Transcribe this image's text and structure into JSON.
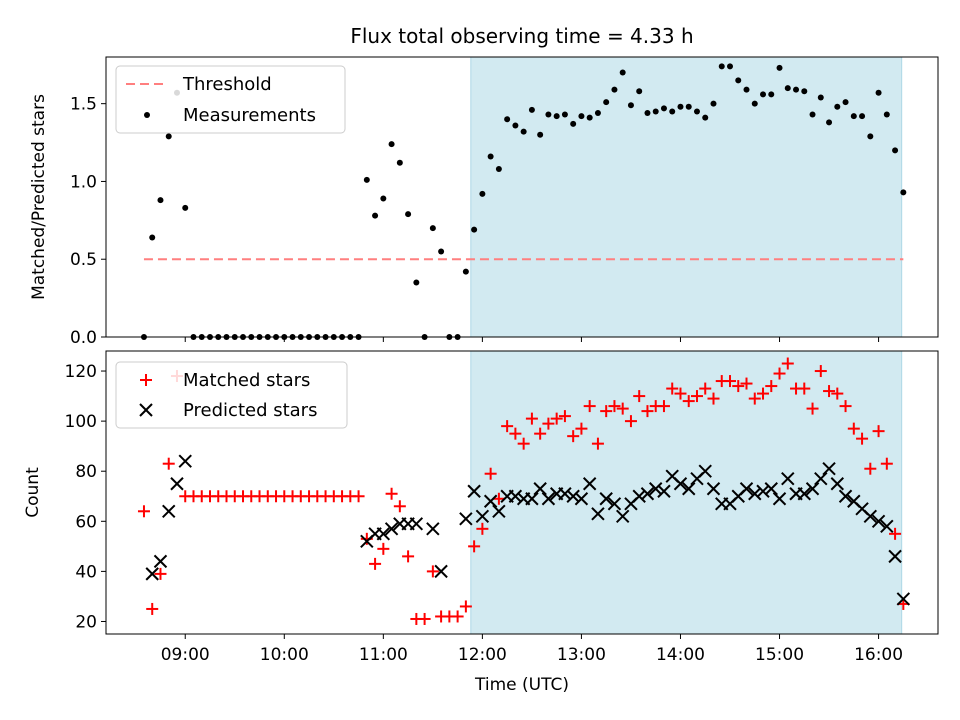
{
  "title": "Flux total observing time = 4.33 h",
  "colors": {
    "threshold": "#ff7f7f",
    "measurement": "#000000",
    "matched": "#ff0000",
    "predicted": "#000000",
    "shade": "#add8e6"
  },
  "chart_data": [
    {
      "type": "scatter",
      "ylabel": "Matched/Predicted stars",
      "ylim": [
        0,
        1.8
      ],
      "xlim_hours": [
        8.2,
        16.6
      ],
      "x_ticks": [
        "09:00",
        "10:00",
        "11:00",
        "12:00",
        "13:00",
        "14:00",
        "15:00",
        "16:00"
      ],
      "y_ticks": [
        "0.0",
        "0.5",
        "1.0",
        "1.5"
      ],
      "legend": [
        "Threshold",
        "Measurements"
      ],
      "legend_position": "top-left",
      "threshold": {
        "label": "Threshold",
        "y": 0.5,
        "x_start": "08:35",
        "x_end": "16:15",
        "style": "dashed"
      },
      "shaded_span": {
        "x_start": "11:53",
        "x_end": "16:14"
      },
      "series": [
        {
          "name": "Measurements",
          "points": [
            [
              "08:35",
              0.0
            ],
            [
              "08:40",
              0.64
            ],
            [
              "08:45",
              0.88
            ],
            [
              "08:50",
              1.29
            ],
            [
              "08:55",
              1.57
            ],
            [
              "09:00",
              0.83
            ],
            [
              "09:05",
              0.0
            ],
            [
              "09:10",
              0.0
            ],
            [
              "09:15",
              0.0
            ],
            [
              "09:20",
              0.0
            ],
            [
              "09:25",
              0.0
            ],
            [
              "09:30",
              0.0
            ],
            [
              "09:35",
              0.0
            ],
            [
              "09:40",
              0.0
            ],
            [
              "09:45",
              0.0
            ],
            [
              "09:50",
              0.0
            ],
            [
              "09:55",
              0.0
            ],
            [
              "10:00",
              0.0
            ],
            [
              "10:05",
              0.0
            ],
            [
              "10:10",
              0.0
            ],
            [
              "10:15",
              0.0
            ],
            [
              "10:20",
              0.0
            ],
            [
              "10:25",
              0.0
            ],
            [
              "10:30",
              0.0
            ],
            [
              "10:35",
              0.0
            ],
            [
              "10:40",
              0.0
            ],
            [
              "10:45",
              0.0
            ],
            [
              "10:50",
              1.01
            ],
            [
              "10:55",
              0.78
            ],
            [
              "11:00",
              0.89
            ],
            [
              "11:05",
              1.24
            ],
            [
              "11:10",
              1.12
            ],
            [
              "11:15",
              0.79
            ],
            [
              "11:20",
              0.35
            ],
            [
              "11:25",
              0.0
            ],
            [
              "11:30",
              0.7
            ],
            [
              "11:35",
              0.55
            ],
            [
              "11:40",
              0.0
            ],
            [
              "11:45",
              0.0
            ],
            [
              "11:50",
              0.42
            ],
            [
              "11:55",
              0.69
            ],
            [
              "12:00",
              0.92
            ],
            [
              "12:05",
              1.16
            ],
            [
              "12:10",
              1.08
            ],
            [
              "12:15",
              1.4
            ],
            [
              "12:20",
              1.36
            ],
            [
              "12:25",
              1.32
            ],
            [
              "12:30",
              1.46
            ],
            [
              "12:35",
              1.3
            ],
            [
              "12:40",
              1.43
            ],
            [
              "12:45",
              1.42
            ],
            [
              "12:50",
              1.43
            ],
            [
              "12:55",
              1.37
            ],
            [
              "13:00",
              1.42
            ],
            [
              "13:05",
              1.41
            ],
            [
              "13:10",
              1.44
            ],
            [
              "13:15",
              1.51
            ],
            [
              "13:20",
              1.59
            ],
            [
              "13:25",
              1.7
            ],
            [
              "13:30",
              1.49
            ],
            [
              "13:35",
              1.58
            ],
            [
              "13:40",
              1.44
            ],
            [
              "13:45",
              1.45
            ],
            [
              "13:50",
              1.47
            ],
            [
              "13:55",
              1.45
            ],
            [
              "14:00",
              1.48
            ],
            [
              "14:05",
              1.48
            ],
            [
              "14:10",
              1.45
            ],
            [
              "14:15",
              1.41
            ],
            [
              "14:20",
              1.5
            ],
            [
              "14:25",
              1.74
            ],
            [
              "14:30",
              1.74
            ],
            [
              "14:35",
              1.65
            ],
            [
              "14:40",
              1.59
            ],
            [
              "14:45",
              1.5
            ],
            [
              "14:50",
              1.56
            ],
            [
              "14:55",
              1.56
            ],
            [
              "15:00",
              1.73
            ],
            [
              "15:05",
              1.6
            ],
            [
              "15:10",
              1.59
            ],
            [
              "15:15",
              1.58
            ],
            [
              "15:20",
              1.43
            ],
            [
              "15:25",
              1.54
            ],
            [
              "15:30",
              1.38
            ],
            [
              "15:35",
              1.48
            ],
            [
              "15:40",
              1.51
            ],
            [
              "15:45",
              1.42
            ],
            [
              "15:50",
              1.42
            ],
            [
              "15:55",
              1.29
            ],
            [
              "16:00",
              1.57
            ],
            [
              "16:05",
              1.43
            ],
            [
              "16:10",
              1.2
            ],
            [
              "16:15",
              0.93
            ]
          ]
        }
      ]
    },
    {
      "type": "scatter",
      "ylabel": "Count",
      "xlabel": "Time (UTC)",
      "ylim": [
        15,
        128
      ],
      "xlim_hours": [
        8.2,
        16.6
      ],
      "x_ticks": [
        "09:00",
        "10:00",
        "11:00",
        "12:00",
        "13:00",
        "14:00",
        "15:00",
        "16:00"
      ],
      "y_ticks": [
        "20",
        "40",
        "60",
        "80",
        "100",
        "120"
      ],
      "legend": [
        "Matched stars",
        "Predicted stars"
      ],
      "legend_position": "top-left",
      "shaded_span": {
        "x_start": "11:53",
        "x_end": "16:14"
      },
      "series": [
        {
          "name": "Matched stars",
          "marker": "+",
          "points": [
            [
              "08:35",
              64
            ],
            [
              "08:40",
              25
            ],
            [
              "08:45",
              39
            ],
            [
              "08:50",
              83
            ],
            [
              "08:55",
              118
            ],
            [
              "09:00",
              70
            ],
            [
              "09:05",
              70
            ],
            [
              "09:10",
              70
            ],
            [
              "09:15",
              70
            ],
            [
              "09:20",
              70
            ],
            [
              "09:25",
              70
            ],
            [
              "09:30",
              70
            ],
            [
              "09:35",
              70
            ],
            [
              "09:40",
              70
            ],
            [
              "09:45",
              70
            ],
            [
              "09:50",
              70
            ],
            [
              "09:55",
              70
            ],
            [
              "10:00",
              70
            ],
            [
              "10:05",
              70
            ],
            [
              "10:10",
              70
            ],
            [
              "10:15",
              70
            ],
            [
              "10:20",
              70
            ],
            [
              "10:25",
              70
            ],
            [
              "10:30",
              70
            ],
            [
              "10:35",
              70
            ],
            [
              "10:40",
              70
            ],
            [
              "10:45",
              70
            ],
            [
              "10:50",
              53
            ],
            [
              "10:55",
              43
            ],
            [
              "11:00",
              49
            ],
            [
              "11:05",
              71
            ],
            [
              "11:10",
              66
            ],
            [
              "11:15",
              46
            ],
            [
              "11:20",
              21
            ],
            [
              "11:25",
              21
            ],
            [
              "11:30",
              40
            ],
            [
              "11:35",
              22
            ],
            [
              "11:40",
              22
            ],
            [
              "11:45",
              22
            ],
            [
              "11:50",
              26
            ],
            [
              "11:55",
              50
            ],
            [
              "12:00",
              57
            ],
            [
              "12:05",
              79
            ],
            [
              "12:10",
              69
            ],
            [
              "12:15",
              98
            ],
            [
              "12:20",
              95
            ],
            [
              "12:25",
              91
            ],
            [
              "12:30",
              101
            ],
            [
              "12:35",
              95
            ],
            [
              "12:40",
              99
            ],
            [
              "12:45",
              101
            ],
            [
              "12:50",
              102
            ],
            [
              "12:55",
              94
            ],
            [
              "13:00",
              97
            ],
            [
              "13:05",
              106
            ],
            [
              "13:10",
              91
            ],
            [
              "13:15",
              104
            ],
            [
              "13:20",
              106
            ],
            [
              "13:25",
              105
            ],
            [
              "13:30",
              100
            ],
            [
              "13:35",
              110
            ],
            [
              "13:40",
              104
            ],
            [
              "13:45",
              106
            ],
            [
              "13:50",
              106
            ],
            [
              "13:55",
              113
            ],
            [
              "14:00",
              111
            ],
            [
              "14:05",
              108
            ],
            [
              "14:10",
              110
            ],
            [
              "14:15",
              113
            ],
            [
              "14:20",
              109
            ],
            [
              "14:25",
              116
            ],
            [
              "14:30",
              116
            ],
            [
              "14:35",
              114
            ],
            [
              "14:40",
              115
            ],
            [
              "14:45",
              109
            ],
            [
              "14:50",
              111
            ],
            [
              "14:55",
              114
            ],
            [
              "15:00",
              119
            ],
            [
              "15:05",
              123
            ],
            [
              "15:10",
              113
            ],
            [
              "15:15",
              113
            ],
            [
              "15:20",
              105
            ],
            [
              "15:25",
              120
            ],
            [
              "15:30",
              112
            ],
            [
              "15:35",
              111
            ],
            [
              "15:40",
              106
            ],
            [
              "15:45",
              97
            ],
            [
              "15:50",
              93
            ],
            [
              "15:55",
              81
            ],
            [
              "16:00",
              96
            ],
            [
              "16:05",
              83
            ],
            [
              "16:10",
              55
            ],
            [
              "16:15",
              27
            ]
          ]
        },
        {
          "name": "Predicted stars",
          "marker": "x",
          "points": [
            [
              "08:40",
              39
            ],
            [
              "08:45",
              44
            ],
            [
              "08:50",
              64
            ],
            [
              "08:55",
              75
            ],
            [
              "09:00",
              84
            ],
            [
              "10:50",
              52
            ],
            [
              "10:55",
              55
            ],
            [
              "11:00",
              55
            ],
            [
              "11:05",
              57
            ],
            [
              "11:10",
              59
            ],
            [
              "11:15",
              59
            ],
            [
              "11:20",
              59
            ],
            [
              "11:30",
              57
            ],
            [
              "11:35",
              40
            ],
            [
              "11:50",
              61
            ],
            [
              "11:55",
              72
            ],
            [
              "12:00",
              62
            ],
            [
              "12:05",
              68
            ],
            [
              "12:10",
              64
            ],
            [
              "12:15",
              70
            ],
            [
              "12:20",
              70
            ],
            [
              "12:25",
              69
            ],
            [
              "12:30",
              69
            ],
            [
              "12:35",
              73
            ],
            [
              "12:40",
              69
            ],
            [
              "12:45",
              71
            ],
            [
              "12:50",
              71
            ],
            [
              "12:55",
              70
            ],
            [
              "13:00",
              69
            ],
            [
              "13:05",
              75
            ],
            [
              "13:10",
              63
            ],
            [
              "13:15",
              69
            ],
            [
              "13:20",
              67
            ],
            [
              "13:25",
              62
            ],
            [
              "13:30",
              67
            ],
            [
              "13:35",
              70
            ],
            [
              "13:40",
              71
            ],
            [
              "13:45",
              73
            ],
            [
              "13:50",
              72
            ],
            [
              "13:55",
              78
            ],
            [
              "14:00",
              75
            ],
            [
              "14:05",
              73
            ],
            [
              "14:10",
              77
            ],
            [
              "14:15",
              80
            ],
            [
              "14:20",
              73
            ],
            [
              "14:25",
              67
            ],
            [
              "14:30",
              67
            ],
            [
              "14:35",
              70
            ],
            [
              "14:40",
              73
            ],
            [
              "14:45",
              71
            ],
            [
              "14:50",
              72
            ],
            [
              "14:55",
              73
            ],
            [
              "15:00",
              69
            ],
            [
              "15:05",
              77
            ],
            [
              "15:10",
              71
            ],
            [
              "15:15",
              71
            ],
            [
              "15:20",
              73
            ],
            [
              "15:25",
              77
            ],
            [
              "15:30",
              81
            ],
            [
              "15:35",
              75
            ],
            [
              "15:40",
              70
            ],
            [
              "15:45",
              68
            ],
            [
              "15:50",
              65
            ],
            [
              "15:55",
              62
            ],
            [
              "16:00",
              60
            ],
            [
              "16:05",
              58
            ],
            [
              "16:10",
              46
            ],
            [
              "16:15",
              29
            ]
          ]
        }
      ]
    }
  ]
}
